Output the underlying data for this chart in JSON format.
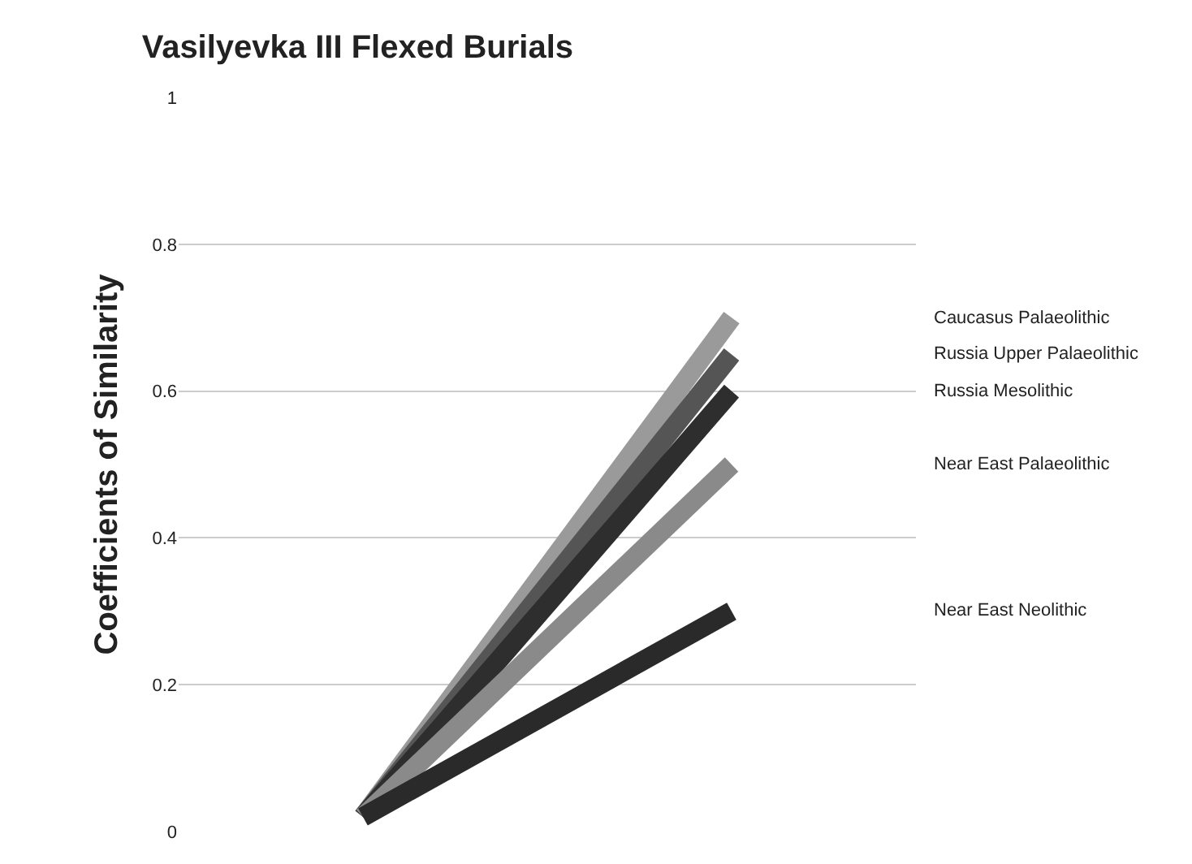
{
  "chart_data": {
    "type": "line",
    "title": "Vasilyevka III Flexed Burials",
    "ylabel": "Coefficients of Similarity",
    "categories": [
      null,
      null
    ],
    "series": [
      {
        "name": "Caucasus Palaeolithic",
        "color": "#9a9a9a",
        "values": [
          0.02,
          0.7
        ]
      },
      {
        "name": "Russia Upper Palaeolithic",
        "color": "#555555",
        "values": [
          0.02,
          0.65
        ]
      },
      {
        "name": "Russia Mesolithic",
        "color": "#2e2e2e",
        "values": [
          0.02,
          0.6
        ]
      },
      {
        "name": "Near East Palaeolithic",
        "color": "#8a8a8a",
        "values": [
          0.02,
          0.5
        ]
      },
      {
        "name": "Near East Neolithic",
        "color": "#2a2a2a",
        "values": [
          0.02,
          0.3
        ]
      }
    ],
    "ylim": [
      0,
      1
    ],
    "yticks": [
      0,
      0.2,
      0.4,
      0.6,
      0.8,
      1
    ],
    "grid": "y",
    "legend": false,
    "marker": "none",
    "line_style": "solid"
  }
}
